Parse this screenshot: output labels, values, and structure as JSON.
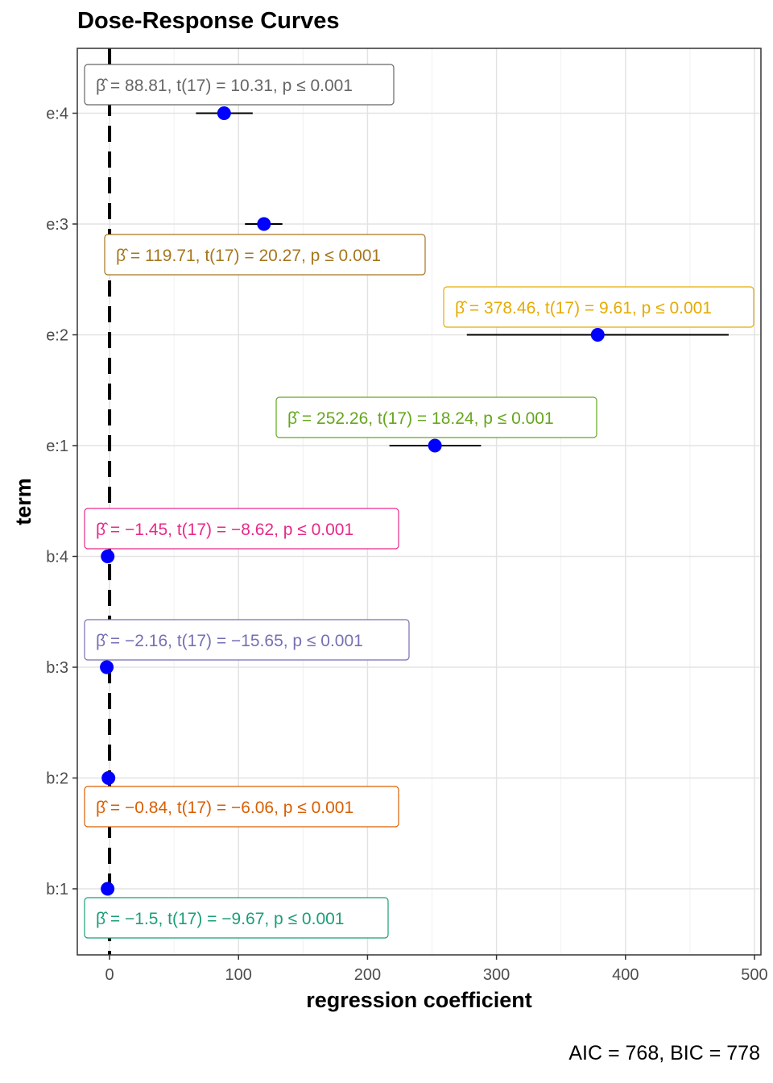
{
  "title": "Dose-Response Curves",
  "caption": "AIC = 768, BIC = 778",
  "chart_data": {
    "type": "scatter",
    "title": "Dose-Response Curves",
    "xlabel": "regression coefficient",
    "ylabel": "term",
    "xlim": [
      -25,
      505
    ],
    "x_ticks": [
      0,
      100,
      200,
      300,
      400,
      500
    ],
    "grid": true,
    "reference_line": 0,
    "terms": [
      "b:1",
      "b:2",
      "b:3",
      "b:4",
      "e:1",
      "e:2",
      "e:3",
      "e:4"
    ],
    "estimates": [
      {
        "term": "e:4",
        "estimate": 88.81,
        "ci": [
          67,
          111
        ],
        "label": "β̂ = 88.81,  t(17) = 10.31,  p ≤ 0.001",
        "color": "#666666"
      },
      {
        "term": "e:3",
        "estimate": 119.71,
        "ci": [
          105,
          134
        ],
        "label": "β̂ = 119.71,  t(17) = 20.27,  p ≤ 0.001",
        "color": "#A6761D"
      },
      {
        "term": "e:2",
        "estimate": 378.46,
        "ci": [
          277,
          480
        ],
        "label": "β̂ = 378.46,  t(17) = 9.61,  p ≤ 0.001",
        "color": "#E6AB02"
      },
      {
        "term": "e:1",
        "estimate": 252.26,
        "ci": [
          217,
          288
        ],
        "label": "β̂ = 252.26,  t(17) = 18.24,  p ≤ 0.001",
        "color": "#66A61E"
      },
      {
        "term": "b:4",
        "estimate": -1.45,
        "ci": [
          -1.8,
          -1.1
        ],
        "label": "β̂ = −1.45,  t(17) = −8.62,  p ≤ 0.001",
        "color": "#E7298A"
      },
      {
        "term": "b:3",
        "estimate": -2.16,
        "ci": [
          -2.45,
          -1.87
        ],
        "label": "β̂ = −2.16,  t(17) = −15.65,  p ≤ 0.001",
        "color": "#7570B3"
      },
      {
        "term": "b:2",
        "estimate": -0.84,
        "ci": [
          -1.13,
          -0.55
        ],
        "label": "β̂ = −0.84,  t(17) = −6.06,  p ≤ 0.001",
        "color": "#D95F02"
      },
      {
        "term": "b:1",
        "estimate": -1.5,
        "ci": [
          -1.83,
          -1.17
        ],
        "label": "β̂ = −1.5,  t(17) = −9.67,  p ≤ 0.001",
        "color": "#1B9E77"
      }
    ]
  }
}
